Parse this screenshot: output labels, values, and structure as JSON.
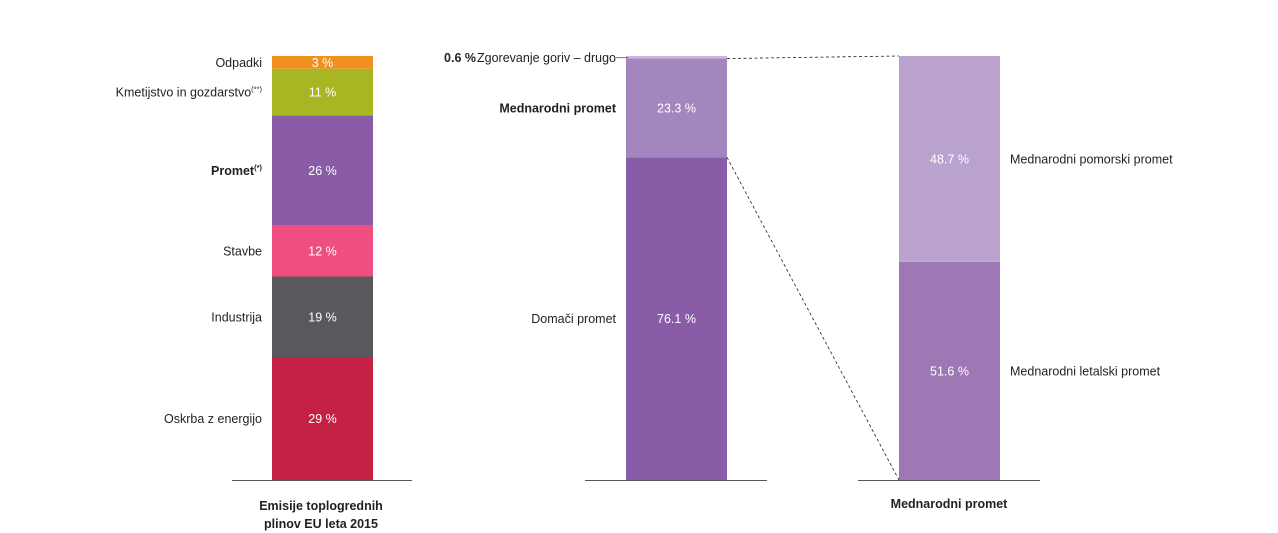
{
  "chart_data": [
    {
      "type": "bar",
      "stacked": true,
      "title": "Emisije toplogrednih plinov EU leta 2015",
      "categories": [
        "Emisije toplogrednih plinov EU leta 2015"
      ],
      "series": [
        {
          "name": "Oskrba z energijo",
          "values": [
            29
          ],
          "label": "29 %",
          "color": "#c52144"
        },
        {
          "name": "Industrija",
          "values": [
            19
          ],
          "label": "19 %",
          "color": "#59585c"
        },
        {
          "name": "Stavbe",
          "values": [
            12
          ],
          "label": "12 %",
          "color": "#ef4f80"
        },
        {
          "name": "Promet",
          "sup": "(*)",
          "values": [
            26
          ],
          "label": "26 %",
          "color": "#8a5ba7",
          "bold": true
        },
        {
          "name": "Kmetijstvo in gozdarstvo",
          "sup": "(**)",
          "values": [
            11
          ],
          "label": "11 %",
          "color": "#a8b624"
        },
        {
          "name": "Odpadki",
          "values": [
            3
          ],
          "label": "3 %",
          "color": "#f0901e"
        }
      ]
    },
    {
      "type": "bar",
      "stacked": true,
      "categories": [
        ""
      ],
      "series": [
        {
          "name": "Domači promet",
          "values": [
            76.1
          ],
          "label": "76.1 %",
          "color": "#895ca7"
        },
        {
          "name": "Mednarodni promet",
          "values": [
            23.3
          ],
          "label": "23.3 %",
          "color": "#a486bf",
          "bold": true
        },
        {
          "name": "Zgorevanje goriv – drugo",
          "values": [
            0.6
          ],
          "label": "0.6 %",
          "color": "#c9b6dc"
        }
      ]
    },
    {
      "type": "bar",
      "stacked": true,
      "title": "Mednarodni promet",
      "categories": [
        "Mednarodni promet"
      ],
      "series": [
        {
          "name": "Mednarodni letalski promet",
          "values": [
            51.6
          ],
          "label": "51.6 %",
          "color": "#9d78b5"
        },
        {
          "name": "Mednarodni pomorski promet",
          "values": [
            48.7
          ],
          "label": "48.7 %",
          "color": "#b9a2cd"
        }
      ]
    }
  ]
}
